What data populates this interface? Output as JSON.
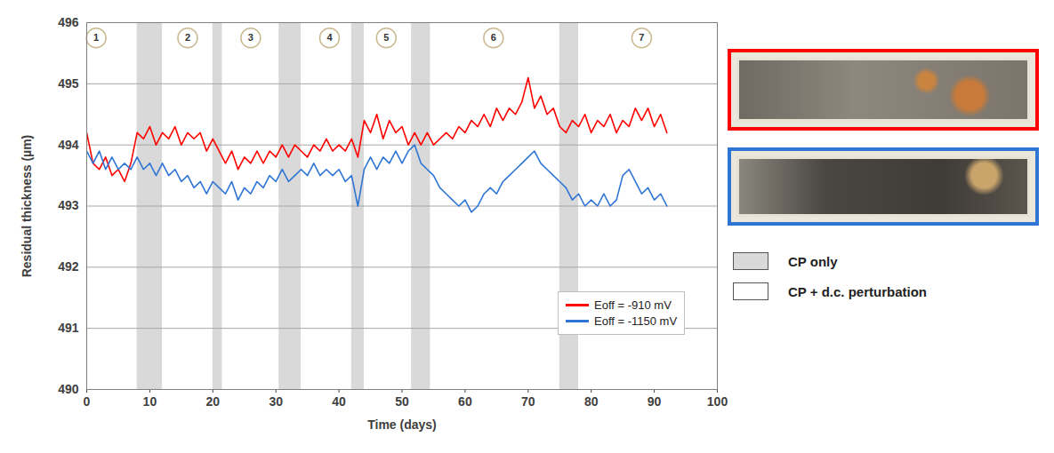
{
  "chart_data": {
    "type": "line",
    "xlabel": "Time (days)",
    "ylabel": "Residual thickness (µm)",
    "xlim": [
      0,
      100
    ],
    "xticks": [
      0,
      10,
      20,
      30,
      40,
      50,
      60,
      70,
      80,
      90,
      100
    ],
    "ylim": [
      490,
      496
    ],
    "yticks": [
      490,
      491,
      492,
      493,
      494,
      495,
      496
    ],
    "grid": true,
    "legend": "bottom-right",
    "x": [
      0,
      1,
      2,
      3,
      4,
      5,
      6,
      7,
      8,
      9,
      10,
      11,
      12,
      13,
      14,
      15,
      16,
      17,
      18,
      19,
      20,
      21,
      22,
      23,
      24,
      25,
      26,
      27,
      28,
      29,
      30,
      31,
      32,
      33,
      34,
      35,
      36,
      37,
      38,
      39,
      40,
      41,
      42,
      43,
      44,
      45,
      46,
      47,
      48,
      49,
      50,
      51,
      52,
      53,
      54,
      55,
      56,
      57,
      58,
      59,
      60,
      61,
      62,
      63,
      64,
      65,
      66,
      67,
      68,
      69,
      70,
      71,
      72,
      73,
      74,
      75,
      76,
      77,
      78,
      79,
      80,
      81,
      82,
      83,
      84,
      85,
      86,
      87,
      88,
      89,
      90,
      91,
      92
    ],
    "series": [
      {
        "name": "Eoff = -910 mV",
        "color": "#ff0000",
        "values": [
          494.2,
          493.7,
          493.6,
          493.8,
          493.5,
          493.6,
          493.4,
          493.7,
          494.2,
          494.1,
          494.3,
          494.0,
          494.2,
          494.1,
          494.3,
          494.0,
          494.2,
          494.1,
          494.2,
          493.9,
          494.1,
          493.9,
          493.7,
          493.9,
          493.6,
          493.8,
          493.7,
          493.9,
          493.7,
          493.9,
          493.8,
          494.0,
          493.8,
          494.0,
          493.9,
          493.8,
          494.0,
          493.9,
          494.1,
          493.9,
          494.0,
          493.9,
          494.1,
          493.8,
          494.4,
          494.2,
          494.5,
          494.1,
          494.4,
          494.2,
          494.3,
          494.0,
          494.2,
          494.0,
          494.2,
          494.0,
          494.1,
          494.2,
          494.1,
          494.3,
          494.2,
          494.4,
          494.3,
          494.5,
          494.3,
          494.6,
          494.4,
          494.6,
          494.5,
          494.7,
          495.1,
          494.6,
          494.8,
          494.5,
          494.6,
          494.3,
          494.2,
          494.4,
          494.3,
          494.5,
          494.2,
          494.4,
          494.3,
          494.5,
          494.2,
          494.4,
          494.3,
          494.6,
          494.4,
          494.6,
          494.3,
          494.5,
          494.2
        ]
      },
      {
        "name": "Eoff = -1150 mV",
        "color": "#2e75d6",
        "values": [
          493.9,
          493.7,
          493.9,
          493.6,
          493.8,
          493.6,
          493.7,
          493.6,
          493.8,
          493.6,
          493.7,
          493.5,
          493.7,
          493.5,
          493.6,
          493.4,
          493.5,
          493.3,
          493.4,
          493.2,
          493.4,
          493.3,
          493.2,
          493.4,
          493.1,
          493.3,
          493.2,
          493.4,
          493.3,
          493.5,
          493.4,
          493.6,
          493.4,
          493.5,
          493.6,
          493.5,
          493.7,
          493.5,
          493.6,
          493.5,
          493.6,
          493.4,
          493.5,
          493.0,
          493.6,
          493.8,
          493.6,
          493.8,
          493.7,
          493.9,
          493.7,
          493.9,
          494.0,
          493.7,
          493.6,
          493.5,
          493.3,
          493.2,
          493.1,
          493.0,
          493.1,
          492.9,
          493.0,
          493.2,
          493.3,
          493.2,
          493.4,
          493.5,
          493.6,
          493.7,
          493.8,
          493.9,
          493.7,
          493.6,
          493.5,
          493.4,
          493.3,
          493.1,
          493.2,
          493.0,
          493.1,
          493.0,
          493.2,
          493.0,
          493.1,
          493.5,
          493.6,
          493.4,
          493.2,
          493.3,
          493.1,
          493.2,
          493.0
        ]
      }
    ],
    "bands": [
      {
        "start": 8,
        "end": 12
      },
      {
        "start": 20,
        "end": 21.5
      },
      {
        "start": 30.5,
        "end": 34
      },
      {
        "start": 42,
        "end": 44
      },
      {
        "start": 51.5,
        "end": 54.5
      },
      {
        "start": 75,
        "end": 78
      }
    ],
    "bands_legend": [
      {
        "label": "CP only",
        "color": "#d9d9d9"
      },
      {
        "label": "CP + d.c. perturbation",
        "color": "#ffffff"
      }
    ],
    "annotations": [
      {
        "text": "1",
        "x": 1.5,
        "y": 495.75
      },
      {
        "text": "2",
        "x": 16,
        "y": 495.75
      },
      {
        "text": "3",
        "x": 26,
        "y": 495.75
      },
      {
        "text": "4",
        "x": 38.5,
        "y": 495.75
      },
      {
        "text": "5",
        "x": 47.5,
        "y": 495.75
      },
      {
        "text": "6",
        "x": 64.5,
        "y": 495.75
      },
      {
        "text": "7",
        "x": 88,
        "y": 495.75
      }
    ]
  }
}
